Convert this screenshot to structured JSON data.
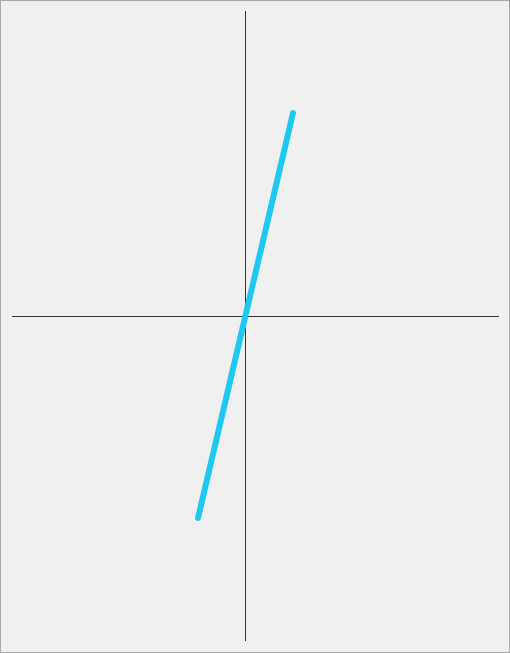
{
  "canvas": {
    "background_color": "#f0f0f0",
    "border_color": "#a8a8a8",
    "axis_color": "#333333",
    "line_color": "#1ec8f0"
  }
}
